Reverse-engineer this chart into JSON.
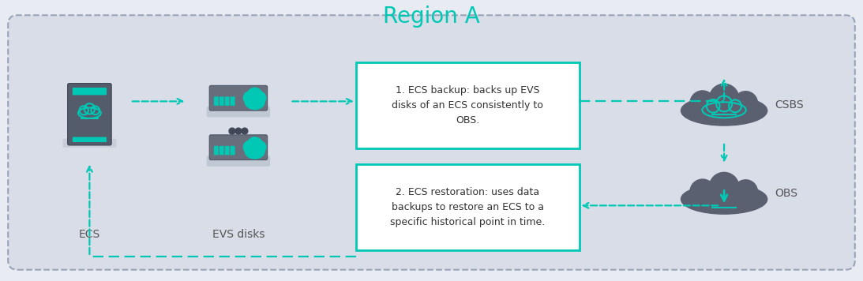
{
  "title": "Region A",
  "title_color": "#00C8B4",
  "title_fontsize": 20,
  "bg_color": "#D8DDE8",
  "outer_box_color": "#9AA4B8",
  "arrow_color": "#00C8B4",
  "text_box_border": "#00C8B4",
  "text_box_fill": "#FFFFFF",
  "label_color": "#555555",
  "label_fontsize": 10,
  "labels": {
    "ecs": "ECS",
    "evs": "EVS disks",
    "csbs": "CSBS",
    "obs": "OBS"
  },
  "text_box1": "1. ECS backup: backs up EVS\ndisks of an ECS consistently to\nOBS.",
  "text_box2": "2. ECS restoration: uses data\nbackups to restore an ECS to a\nspecific historical point in time.",
  "cloud_dark": "#5A6070",
  "cloud_teal": "#00C8B4",
  "server_dark": "#545C6C",
  "server_base": "#C8CDD8",
  "disk_dark": "#686E7C",
  "disk_base": "#C0C8D4"
}
